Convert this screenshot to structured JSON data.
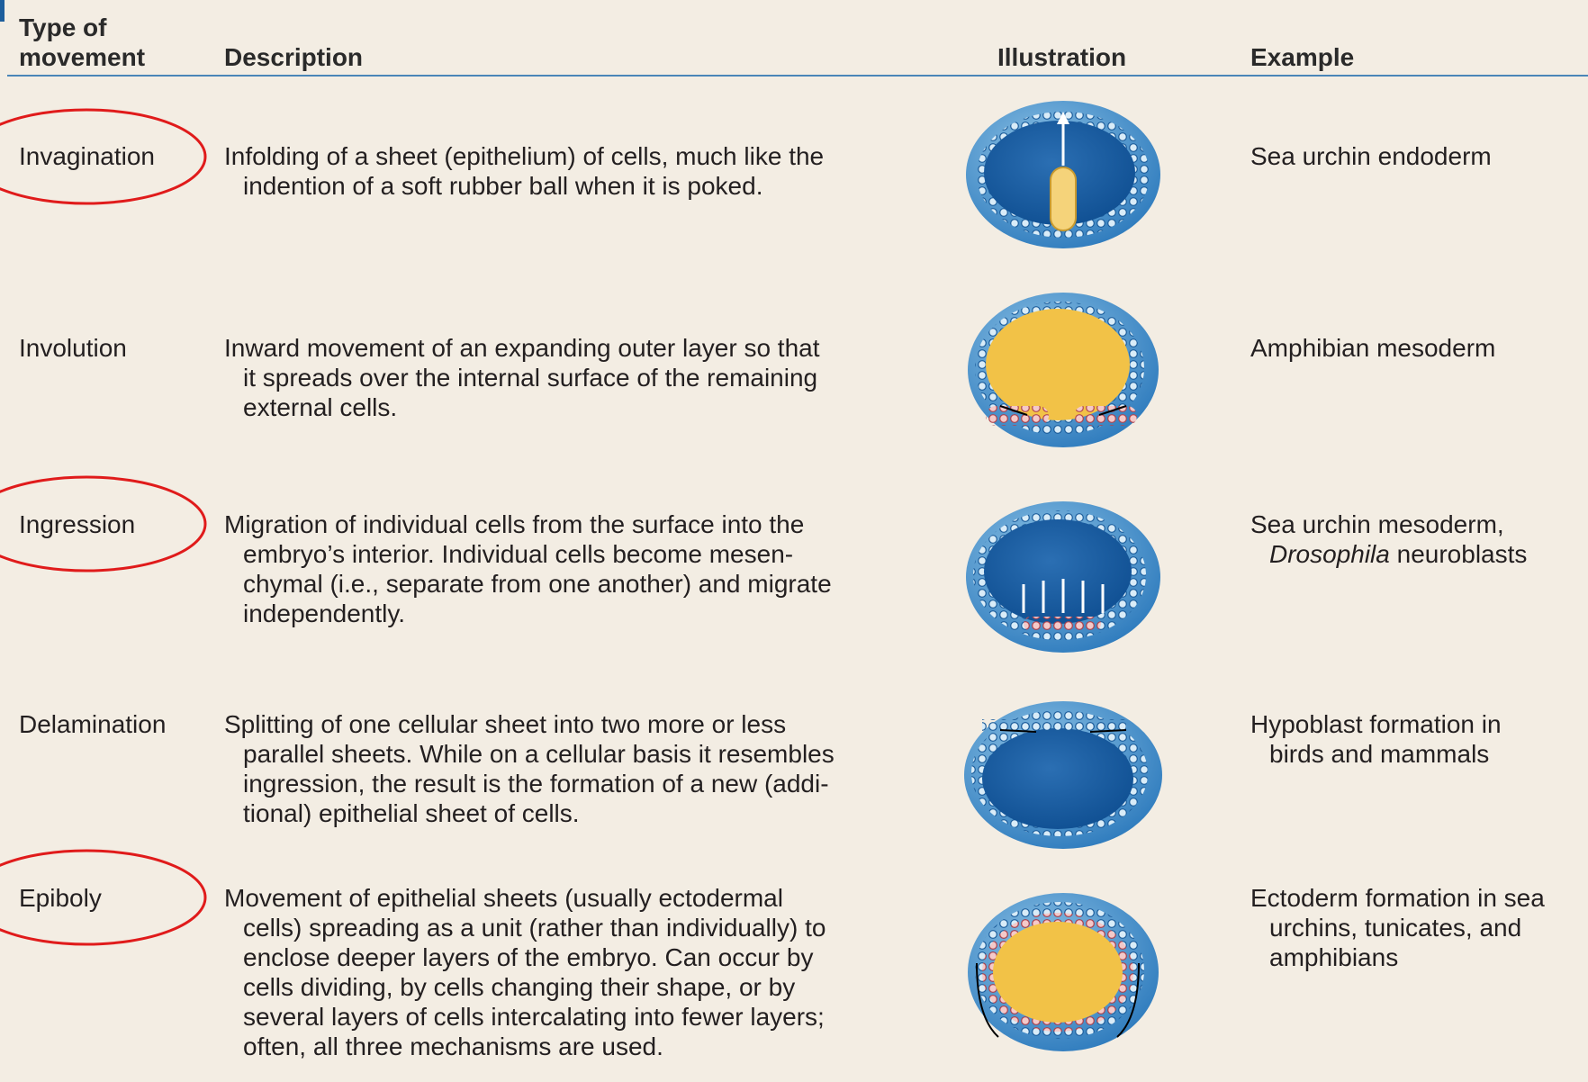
{
  "header": {
    "columns": [
      [
        "Type of",
        "movement"
      ],
      [
        "Description"
      ],
      [
        "Illustration"
      ],
      [
        "Example"
      ]
    ]
  },
  "rows": [
    {
      "type": "Invagination",
      "description": [
        "Infolding of a sheet (epithelium) of cells, much like the",
        "indention of a soft rubber ball when it is poked."
      ],
      "example": [
        [
          "Sea urchin endoderm"
        ]
      ]
    },
    {
      "type": "Involution",
      "description": [
        "Inward movement of an expanding outer layer so that",
        "it spreads over the internal surface of the remaining",
        "external cells."
      ],
      "example": [
        [
          "Amphibian mesoderm"
        ]
      ]
    },
    {
      "type": "Ingression",
      "description": [
        "Migration of individual cells from the surface into the",
        "embryo’s interior. Individual cells become mesen-",
        "chymal (i.e., separate from one another) and migrate",
        "independently."
      ],
      "example": [
        [
          "Sea urchin mesoderm,"
        ],
        [
          "Drosophila",
          " neuroblasts"
        ]
      ]
    },
    {
      "type": "Delamination",
      "description": [
        "Splitting of one cellular sheet into two more or less",
        "parallel sheets. While on a cellular basis it resembles",
        "ingression, the result is the formation of a new (addi-",
        "tional) epithelial sheet of cells."
      ],
      "example": [
        [
          "Hypoblast formation in"
        ],
        [
          "birds and mammals"
        ]
      ]
    },
    {
      "type": "Epiboly",
      "description": [
        "Movement of epithelial sheets (usually ectodermal",
        "cells) spreading as a unit (rather than individually) to",
        "enclose deeper layers of the embryo. Can occur by",
        "cells dividing, by cells changing their shape, or by",
        "several layers of cells intercalating into fewer layers;",
        "often, all three mechanisms are used."
      ],
      "example": [
        [
          "Ectoderm formation in sea"
        ],
        [
          "urchins, tunicates, and"
        ],
        [
          "amphibians"
        ]
      ]
    }
  ]
}
